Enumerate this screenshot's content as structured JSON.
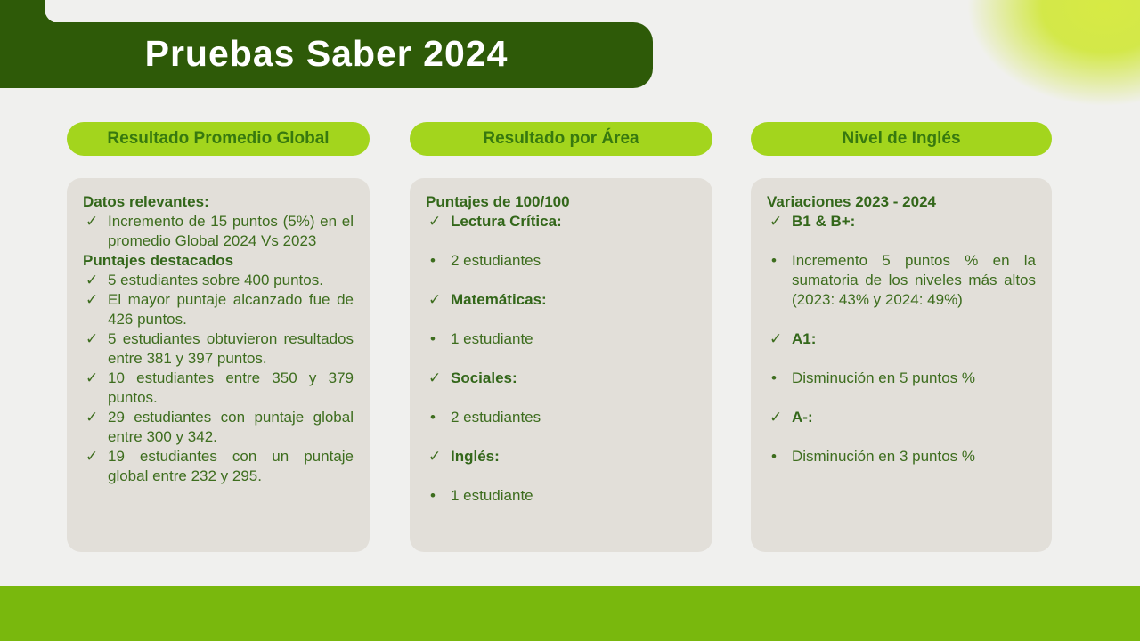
{
  "title": "Pruebas Saber 2024",
  "icons": {
    "check": "✓",
    "bullet": "•"
  },
  "colors": {
    "banner_green": "#2e5a08",
    "pill_lime": "#a3d51d",
    "footer_green": "#79b80d",
    "card_gray": "#e2dfd9",
    "text_green": "#3d6d1e",
    "background": "#f0f0ee"
  },
  "columns": [
    {
      "header": "Resultado Promedio Global",
      "spacing": "tight",
      "blocks": [
        {
          "type": "heading",
          "text": "Datos relevantes:"
        },
        {
          "type": "check",
          "text": "Incremento de 15 puntos (5%) en el promedio Global 2024 Vs 2023"
        },
        {
          "type": "heading",
          "text": "Puntajes destacados"
        },
        {
          "type": "check",
          "text": "5 estudiantes sobre 400 puntos."
        },
        {
          "type": "check",
          "text": "El mayor puntaje alcanzado fue de 426 puntos."
        },
        {
          "type": "check",
          "text": "5 estudiantes obtuvieron resultados entre 381 y 397 puntos."
        },
        {
          "type": "check",
          "text": "10 estudiantes entre 350 y 379 puntos."
        },
        {
          "type": "check",
          "text": "29 estudiantes con puntaje global entre 300 y 342."
        },
        {
          "type": "check",
          "text": "19 estudiantes con un puntaje global entre 232 y 295."
        }
      ]
    },
    {
      "header": "Resultado por Área",
      "spacing": "loose",
      "blocks": [
        {
          "type": "heading",
          "text": "Puntajes de 100/100"
        },
        {
          "type": "check-bold",
          "text": "Lectura Crítica:"
        },
        {
          "type": "bullet",
          "text": "2 estudiantes"
        },
        {
          "type": "check-bold",
          "text": "Matemáticas:"
        },
        {
          "type": "bullet",
          "text": "1 estudiante"
        },
        {
          "type": "check-bold",
          "text": "Sociales:"
        },
        {
          "type": "bullet",
          "text": "2 estudiantes"
        },
        {
          "type": "check-bold",
          "text": "Inglés:"
        },
        {
          "type": "bullet",
          "text": "1 estudiante"
        }
      ]
    },
    {
      "header": "Nivel de Inglés",
      "spacing": "loose",
      "blocks": [
        {
          "type": "heading",
          "text": "Variaciones 2023 - 2024"
        },
        {
          "type": "check-bold",
          "text": "B1 & B+:"
        },
        {
          "type": "bullet",
          "text": "Incremento 5 puntos % en la sumatoria de los niveles más altos (2023: 43% y 2024: 49%)"
        },
        {
          "type": "check-bold",
          "text": "A1:"
        },
        {
          "type": "bullet",
          "text": "Disminución en 5 puntos %"
        },
        {
          "type": "check-bold",
          "text": "A-:"
        },
        {
          "type": "bullet",
          "text": "Disminución en 3 puntos %"
        }
      ]
    }
  ]
}
